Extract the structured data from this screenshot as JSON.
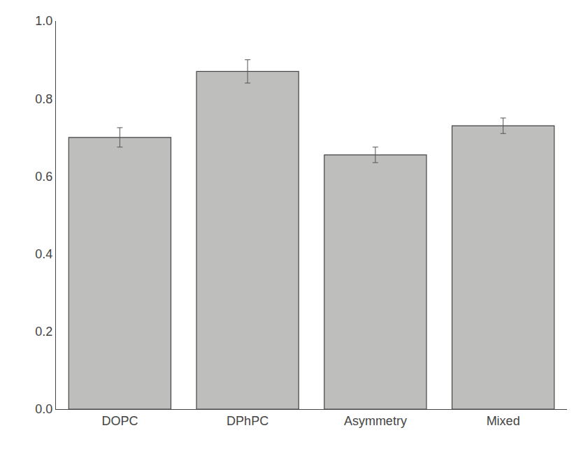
{
  "chart_data": {
    "type": "bar",
    "categories": [
      "DOPC",
      "DPhPC",
      "Asymmetry",
      "Mixed"
    ],
    "values": [
      0.7,
      0.87,
      0.655,
      0.73
    ],
    "errors": [
      0.025,
      0.03,
      0.02,
      0.02
    ],
    "color": "#BEBEBD",
    "ylim": [
      0.0,
      1.0
    ],
    "yticks": [
      {
        "value": 0,
        "label": "0.0"
      },
      0.2,
      0.4,
      0.6,
      0.8,
      {
        "value": 1,
        "label": "1.0"
      }
    ],
    "grid": false
  }
}
